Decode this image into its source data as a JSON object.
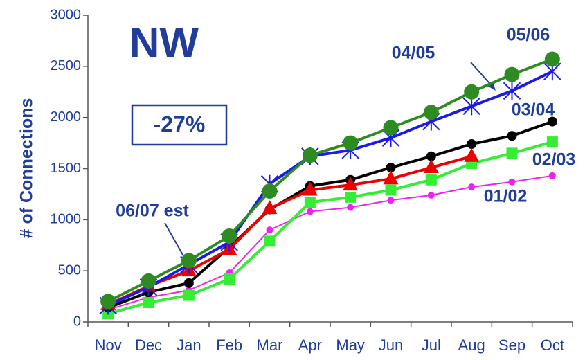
{
  "chart_data": {
    "type": "line",
    "title": "NW",
    "annotation": "-27%",
    "y_label": "# of Connections",
    "categories": [
      "Nov",
      "Dec",
      "Jan",
      "Feb",
      "Mar",
      "Apr",
      "May",
      "Jun",
      "Jul",
      "Aug",
      "Sep",
      "Oct"
    ],
    "ylim": [
      0,
      3000
    ],
    "yticks": [
      0,
      500,
      1000,
      1500,
      2000,
      2500,
      3000
    ],
    "series": [
      {
        "name": "01/02",
        "color": "#ee22ee",
        "marker": "small-circle",
        "values": [
          120,
          240,
          310,
          480,
          900,
          1080,
          1120,
          1190,
          1240,
          1320,
          1370,
          1430
        ]
      },
      {
        "name": "02/03",
        "color": "#33ee33",
        "marker": "square",
        "values": [
          80,
          190,
          260,
          420,
          790,
          1170,
          1220,
          1290,
          1390,
          1550,
          1650,
          1760
        ]
      },
      {
        "name": "03/04",
        "color": "#000000",
        "marker": "circle",
        "values": [
          140,
          290,
          380,
          730,
          1100,
          1330,
          1390,
          1510,
          1620,
          1740,
          1820,
          1960
        ]
      },
      {
        "name": "06/07 est",
        "color": "#ee0000",
        "marker": "triangle",
        "values": [
          170,
          350,
          500,
          710,
          1110,
          1290,
          1340,
          1400,
          1510,
          1620,
          null,
          null
        ]
      },
      {
        "name": "04/05",
        "color": "#1a1aee",
        "marker": "asterisk",
        "values": [
          160,
          340,
          560,
          780,
          1350,
          1620,
          1680,
          1800,
          1960,
          2110,
          2260,
          2450
        ]
      },
      {
        "name": "05/06",
        "color": "#2e8b22",
        "marker": "big-circle",
        "values": [
          200,
          400,
          600,
          840,
          1280,
          1630,
          1750,
          1900,
          2050,
          2250,
          2420,
          2570
        ]
      }
    ]
  }
}
